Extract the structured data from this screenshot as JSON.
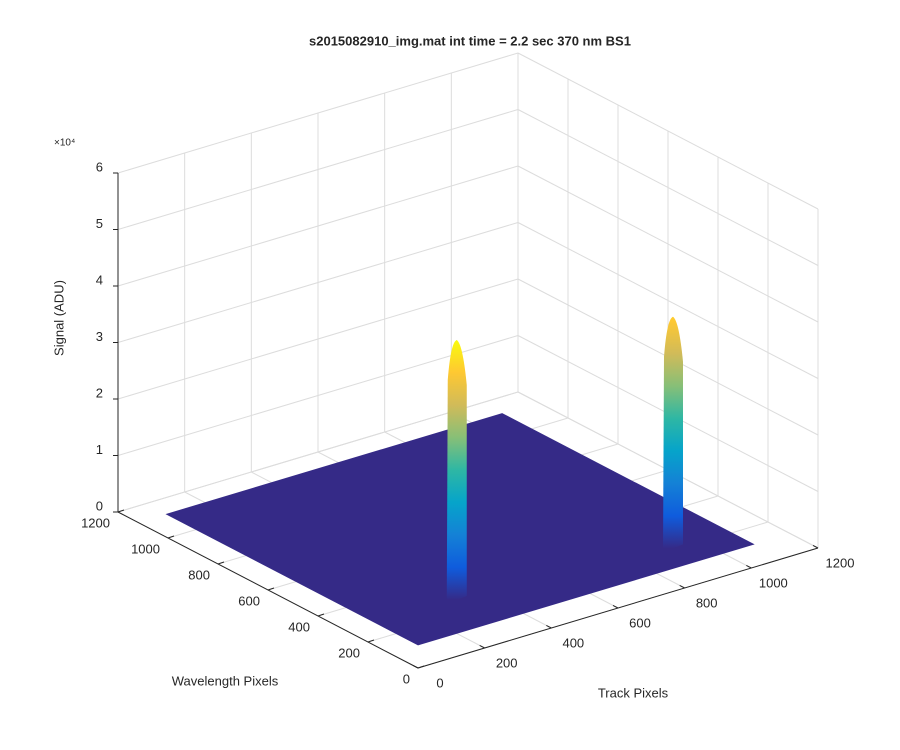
{
  "chart_data": {
    "type": "surface3d",
    "title": "s2015082910_img.mat int time = 2.2 sec  370 nm BS1",
    "xlabel": "Track Pixels",
    "ylabel": "Wavelength Pixels",
    "zlabel": "Signal (ADU)",
    "z_exponent_label": "×10⁴",
    "xlim": [
      0,
      1200
    ],
    "xticks": [
      0,
      200,
      400,
      600,
      800,
      1000,
      1200
    ],
    "ylim": [
      0,
      1200
    ],
    "yticks": [
      0,
      200,
      400,
      600,
      800,
      1000,
      1200
    ],
    "zlim": [
      0,
      60000
    ],
    "zticks": [
      0,
      {
        "value": 10000,
        "label": "1"
      },
      {
        "value": 20000,
        "label": "2"
      },
      {
        "value": 30000,
        "label": "3"
      },
      {
        "value": 40000,
        "label": "4"
      },
      {
        "value": 50000,
        "label": "5"
      },
      {
        "value": 60000,
        "label": "6"
      }
    ],
    "grid": true,
    "surface": {
      "x_range": [
        0,
        1010
      ],
      "y_range": [
        0,
        1010
      ],
      "floor": 4000,
      "color": "#352a87"
    },
    "peaks": [
      {
        "x": 240,
        "y": 165,
        "z": 50000
      },
      {
        "x": 840,
        "y": 100,
        "z": 45000
      }
    ],
    "colormap": [
      "#352a87",
      "#0f5cdd",
      "#1481d6",
      "#06a4ca",
      "#2eb7a4",
      "#87bf77",
      "#d1bb59",
      "#fec832",
      "#f9fb0e"
    ]
  }
}
